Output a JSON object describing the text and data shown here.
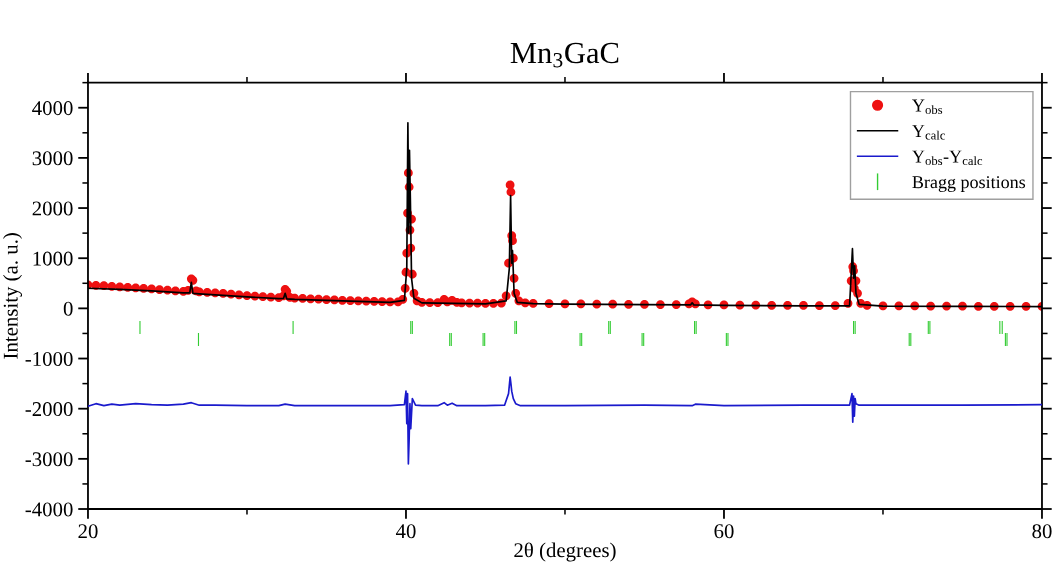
{
  "chart_data": {
    "type": "line",
    "title": "Mn$_{3}$GaC",
    "xlabel": "2θ (degrees)",
    "ylabel": "Intensity (a. u.)",
    "xlim": [
      20,
      80
    ],
    "xticks": [
      20,
      40,
      60,
      80
    ],
    "ylim": [
      -4000,
      4500
    ],
    "yticks": [
      -4000,
      -3000,
      -2000,
      -1000,
      0,
      1000,
      2000,
      3000,
      4000
    ],
    "grid": false,
    "legend": "top right",
    "series": [
      {
        "name": "Y$_{obs}$",
        "type": "scatter",
        "marker": "circle",
        "color": "#ee1111",
        "x": [
          20.0,
          20.5,
          21,
          21.5,
          22,
          22.5,
          23,
          23.5,
          24,
          24.5,
          25,
          25.5,
          26,
          26.3,
          26.5,
          26.6,
          26.8,
          27,
          27.5,
          28,
          28.5,
          29,
          29.5,
          30,
          30.5,
          31,
          31.5,
          32,
          32.3,
          32.4,
          32.5,
          32.7,
          33,
          33.5,
          34,
          34.5,
          35,
          35.5,
          36,
          36.5,
          37,
          37.5,
          38,
          38.5,
          39,
          39.5,
          39.8,
          39.95,
          40.0,
          40.05,
          40.1,
          40.15,
          40.2,
          40.25,
          40.3,
          40.35,
          40.4,
          40.5,
          40.7,
          41,
          41.5,
          42,
          42.4,
          42.6,
          42.9,
          43.2,
          43.5,
          44,
          44.5,
          45,
          45.5,
          46,
          46.3,
          46.45,
          46.55,
          46.6,
          46.65,
          46.7,
          46.75,
          46.8,
          46.9,
          47.1,
          47.5,
          48,
          49,
          50,
          51,
          52,
          53,
          54,
          55,
          56,
          57,
          57.8,
          58,
          58.2,
          59,
          60,
          61,
          62,
          63,
          64,
          65,
          66,
          67,
          67.8,
          68.0,
          68.1,
          68.15,
          68.2,
          68.3,
          68.4,
          68.6,
          69,
          70,
          71,
          72,
          73,
          74,
          75,
          76,
          77,
          78,
          79,
          80
        ],
        "values": [
          470,
          460,
          455,
          440,
          430,
          420,
          410,
          400,
          390,
          375,
          365,
          350,
          340,
          360,
          590,
          560,
          350,
          330,
          320,
          310,
          300,
          285,
          270,
          255,
          245,
          235,
          225,
          215,
          250,
          380,
          340,
          220,
          205,
          200,
          190,
          185,
          175,
          170,
          160,
          155,
          150,
          145,
          140,
          135,
          130,
          130,
          180,
          400,
          720,
          1100,
          1900,
          2700,
          2420,
          1560,
          1200,
          1780,
          680,
          300,
          150,
          120,
          115,
          115,
          180,
          130,
          160,
          120,
          110,
          105,
          105,
          100,
          100,
          105,
          250,
          900,
          2460,
          2320,
          1450,
          1350,
          1000,
          600,
          300,
          150,
          110,
          100,
          95,
          90,
          90,
          85,
          85,
          80,
          80,
          75,
          75,
          90,
          130,
          90,
          70,
          70,
          65,
          65,
          60,
          60,
          60,
          55,
          55,
          100,
          550,
          830,
          750,
          400,
          550,
          300,
          100,
          60,
          50,
          50,
          50,
          45,
          45,
          45,
          40,
          40,
          40,
          40,
          40
        ]
      },
      {
        "name": "Y$_{calc}$",
        "color": "#000000",
        "x": [
          20,
          22,
          24,
          26,
          26.4,
          26.5,
          26.6,
          27,
          28,
          30,
          32,
          32.3,
          32.4,
          32.5,
          33,
          35,
          37,
          39,
          39.9,
          40.05,
          40.12,
          40.18,
          40.22,
          40.28,
          40.35,
          40.5,
          41,
          43,
          45,
          46.3,
          46.5,
          46.58,
          46.65,
          46.7,
          46.8,
          47,
          48,
          50,
          55,
          57.9,
          58,
          58.1,
          60,
          65,
          67.9,
          68.08,
          68.15,
          68.22,
          68.3,
          68.5,
          70,
          75,
          80
        ],
        "values": [
          400,
          380,
          350,
          310,
          310,
          520,
          300,
          290,
          270,
          230,
          195,
          200,
          300,
          190,
          180,
          160,
          140,
          120,
          160,
          800,
          3700,
          1500,
          3150,
          2100,
          600,
          200,
          110,
          100,
          90,
          150,
          800,
          2250,
          900,
          1150,
          300,
          120,
          95,
          85,
          75,
          70,
          110,
          70,
          60,
          50,
          50,
          1190,
          600,
          850,
          300,
          80,
          45,
          40,
          35
        ]
      },
      {
        "name": "Y$_{obs}$-Y$_{calc}$",
        "color": "#1a1acc",
        "x": [
          20,
          20.5,
          21,
          21.5,
          22,
          23,
          24,
          25,
          26,
          26.5,
          27,
          28,
          30,
          32,
          32.4,
          33,
          35,
          37,
          39,
          39.9,
          40.0,
          40.05,
          40.1,
          40.15,
          40.2,
          40.25,
          40.3,
          40.4,
          40.6,
          41,
          42,
          42.4,
          42.6,
          42.9,
          43.2,
          44,
          45,
          46.2,
          46.45,
          46.55,
          46.6,
          46.65,
          46.75,
          46.9,
          47.2,
          48,
          50,
          55,
          58,
          58.2,
          60,
          65,
          67.9,
          68.05,
          68.1,
          68.15,
          68.2,
          68.25,
          68.3,
          68.5,
          70,
          75,
          80
        ],
        "values": [
          -1950,
          -1900,
          -1940,
          -1910,
          -1930,
          -1900,
          -1920,
          -1930,
          -1910,
          -1880,
          -1930,
          -1930,
          -1940,
          -1940,
          -1910,
          -1940,
          -1940,
          -1940,
          -1940,
          -1920,
          -1650,
          -2300,
          -1700,
          -3100,
          -2600,
          -1900,
          -2400,
          -1800,
          -1930,
          -1940,
          -1940,
          -1880,
          -1930,
          -1890,
          -1940,
          -1940,
          -1940,
          -1930,
          -1700,
          -1370,
          -1500,
          -1650,
          -1800,
          -1900,
          -1940,
          -1940,
          -1940,
          -1930,
          -1940,
          -1910,
          -1940,
          -1930,
          -1930,
          -1700,
          -2270,
          -1750,
          -2150,
          -1800,
          -1900,
          -1930,
          -1930,
          -1930,
          -1920
        ]
      },
      {
        "name": "Bragg positions",
        "type": "bar",
        "base": [
          -510,
          -750,
          -510,
          -510,
          -510,
          -750,
          -750,
          -750,
          -750,
          -510,
          -510,
          -750,
          -750,
          -510,
          -510,
          -750,
          -750,
          -510,
          -510,
          -750,
          -750,
          -510,
          -510,
          -750,
          -750,
          -510,
          -510,
          -510,
          -510,
          -750,
          -750
        ],
        "color": "#33cc33",
        "x": [
          23.27,
          26.95,
          32.9,
          40.3,
          40.4,
          42.75,
          42.85,
          44.85,
          44.95,
          46.85,
          46.95,
          50.95,
          51.05,
          52.75,
          52.85,
          54.85,
          54.95,
          58.15,
          58.25,
          60.15,
          60.25,
          68.15,
          68.25,
          71.65,
          71.75,
          72.85,
          72.95,
          77.35,
          77.5,
          77.7,
          77.8
        ],
        "values": [
          260,
          260,
          260,
          260,
          260,
          260,
          260,
          260,
          260,
          260,
          260,
          260,
          260,
          260,
          260,
          260,
          260,
          260,
          260,
          260,
          260,
          260,
          260,
          260,
          260,
          260,
          260,
          260,
          260,
          260,
          260
        ]
      }
    ]
  }
}
